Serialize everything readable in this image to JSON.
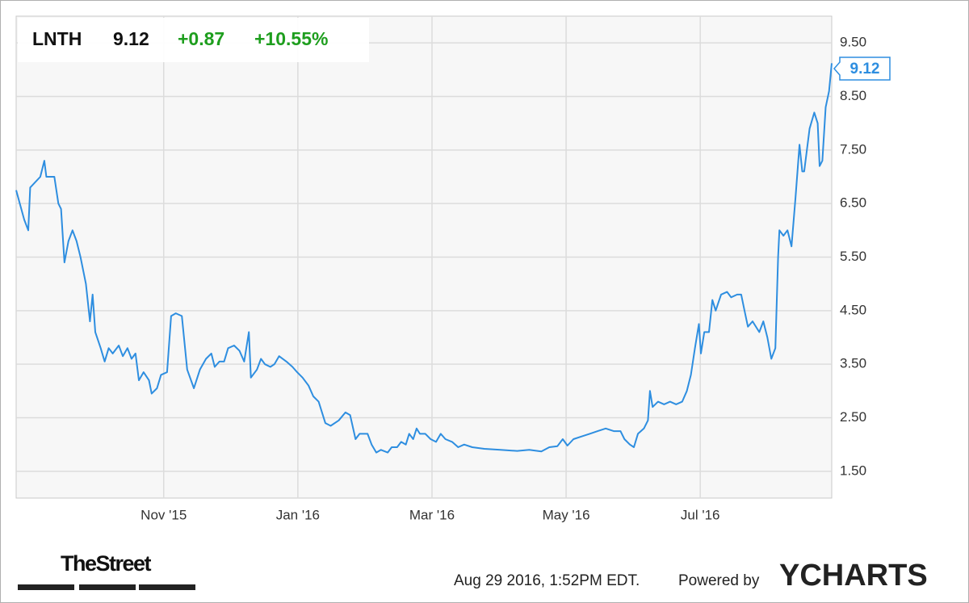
{
  "chart_data": {
    "type": "line",
    "ticker": "LNTH",
    "price": 9.12,
    "change": "+0.87",
    "change_pct": "+10.55%",
    "color": "#2e8ee0",
    "grid": true,
    "x": [
      8.8,
      8.92,
      8.98,
      9.01,
      9.16,
      9.22,
      9.25,
      9.37,
      9.43,
      9.47,
      9.52,
      9.58,
      9.64,
      9.7,
      9.76,
      9.84,
      9.9,
      9.94,
      9.98,
      10.06,
      10.12,
      10.18,
      10.24,
      10.33,
      10.39,
      10.46,
      10.52,
      10.58,
      10.63,
      10.7,
      10.78,
      10.82,
      10.9,
      10.96,
      11.05,
      11.11,
      11.18,
      11.27,
      11.35,
      11.45,
      11.54,
      11.63,
      11.71,
      11.76,
      11.83,
      11.9,
      11.96,
      12.05,
      12.13,
      12.2,
      12.27,
      12.3,
      12.39,
      12.45,
      12.51,
      12.59,
      12.65,
      12.72,
      12.83,
      12.92,
      12.99,
      13.07,
      13.16,
      13.23,
      13.31,
      13.41,
      13.49,
      13.61,
      13.71,
      13.78,
      13.86,
      13.92,
      14.04,
      14.1,
      14.17,
      14.24,
      14.34,
      14.4,
      14.48,
      14.54,
      14.61,
      14.66,
      14.72,
      14.77,
      14.82,
      14.9,
      14.98,
      15.06,
      15.13,
      15.2,
      15.3,
      15.39,
      15.48,
      15.6,
      15.78,
      16.02,
      16.27,
      16.45,
      16.63,
      16.75,
      16.87,
      16.95,
      17.02,
      17.11,
      17.23,
      17.35,
      17.47,
      17.59,
      17.71,
      17.81,
      17.87,
      17.95,
      18.01,
      18.07,
      18.16,
      18.22,
      18.25,
      18.29,
      18.37,
      18.46,
      18.55,
      18.64,
      18.73,
      18.8,
      18.86,
      18.92,
      18.98,
      19.01,
      19.06,
      19.13,
      19.18,
      19.23,
      19.31,
      19.4,
      19.46,
      19.55,
      19.61,
      19.66,
      19.71,
      19.78,
      19.88,
      19.94,
      20.0,
      20.06,
      20.12,
      20.16,
      20.18,
      20.24,
      20.3,
      20.36,
      20.42,
      20.48,
      20.52,
      20.55,
      20.63,
      20.7,
      20.75,
      20.78,
      20.82,
      20.87,
      20.92,
      20.96
    ],
    "values": [
      6.75,
      6.2,
      6.0,
      6.8,
      7.0,
      7.3,
      7.0,
      7.0,
      6.5,
      6.4,
      5.4,
      5.8,
      6.0,
      5.8,
      5.5,
      5.0,
      4.3,
      4.8,
      4.1,
      3.8,
      3.55,
      3.8,
      3.7,
      3.85,
      3.65,
      3.8,
      3.6,
      3.7,
      3.2,
      3.35,
      3.2,
      2.95,
      3.05,
      3.3,
      3.35,
      4.4,
      4.45,
      4.4,
      3.4,
      3.05,
      3.4,
      3.6,
      3.7,
      3.45,
      3.55,
      3.55,
      3.8,
      3.85,
      3.75,
      3.55,
      4.1,
      3.25,
      3.4,
      3.6,
      3.5,
      3.45,
      3.5,
      3.65,
      3.55,
      3.45,
      3.35,
      3.25,
      3.1,
      2.9,
      2.8,
      2.4,
      2.35,
      2.45,
      2.6,
      2.55,
      2.1,
      2.2,
      2.2,
      2.0,
      1.85,
      1.9,
      1.85,
      1.95,
      1.95,
      2.05,
      2.0,
      2.2,
      2.1,
      2.3,
      2.2,
      2.2,
      2.1,
      2.05,
      2.2,
      2.1,
      2.05,
      1.95,
      2.0,
      1.95,
      1.92,
      1.9,
      1.88,
      1.9,
      1.87,
      1.95,
      1.97,
      2.1,
      1.98,
      2.1,
      2.15,
      2.2,
      2.25,
      2.3,
      2.25,
      2.25,
      2.1,
      2.0,
      1.95,
      2.2,
      2.3,
      2.45,
      3.0,
      2.7,
      2.8,
      2.75,
      2.8,
      2.75,
      2.8,
      3.0,
      3.3,
      3.8,
      4.25,
      3.7,
      4.1,
      4.1,
      4.7,
      4.5,
      4.8,
      4.85,
      4.75,
      4.8,
      4.8,
      4.5,
      4.2,
      4.3,
      4.1,
      4.3,
      4.0,
      3.6,
      3.8,
      5.5,
      6.0,
      5.9,
      6.0,
      5.7,
      6.6,
      7.6,
      7.1,
      7.1,
      7.9,
      8.2,
      8.0,
      7.2,
      7.3,
      8.3,
      8.6,
      9.12
    ],
    "xlim": [
      8.8,
      20.96
    ],
    "xticks": [
      {
        "value": 11,
        "label": "Nov '15"
      },
      {
        "value": 13,
        "label": "Jan '16"
      },
      {
        "value": 15,
        "label": "Mar '16"
      },
      {
        "value": 17,
        "label": "May '16"
      },
      {
        "value": 19,
        "label": "Jul '16"
      }
    ],
    "ylim": [
      1.0,
      10.0
    ],
    "yticks": [
      {
        "value": 1.5,
        "label": "1.50"
      },
      {
        "value": 2.5,
        "label": "2.50"
      },
      {
        "value": 3.5,
        "label": "3.50"
      },
      {
        "value": 4.5,
        "label": "4.50"
      },
      {
        "value": 5.5,
        "label": "5.50"
      },
      {
        "value": 6.5,
        "label": "6.50"
      },
      {
        "value": 7.5,
        "label": "7.50"
      },
      {
        "value": 8.5,
        "label": "8.50"
      },
      {
        "value": 9.5,
        "label": "9.50"
      }
    ]
  },
  "footer": {
    "source": "TheStreet",
    "timestamp": "Aug 29 2016, 1:52PM EDT.",
    "powered_by": "Powered by",
    "brand": "YCHARTS"
  }
}
